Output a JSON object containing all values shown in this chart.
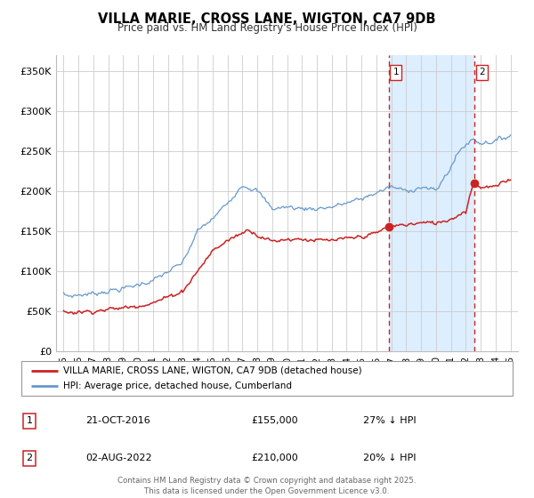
{
  "title": "VILLA MARIE, CROSS LANE, WIGTON, CA7 9DB",
  "subtitle": "Price paid vs. HM Land Registry's House Price Index (HPI)",
  "hpi_color": "#6699cc",
  "price_color": "#cc2222",
  "marker_color": "#cc2222",
  "shade_color": "#ddeeff",
  "bg_color": "#ffffff",
  "grid_color": "#cccccc",
  "sale1_date": 2016.81,
  "sale1_price": 155000,
  "sale1_label": "1",
  "sale2_date": 2022.58,
  "sale2_price": 210000,
  "sale2_label": "2",
  "ylabel_ticks": [
    "£0",
    "£50K",
    "£100K",
    "£150K",
    "£200K",
    "£250K",
    "£300K",
    "£350K"
  ],
  "ylabel_values": [
    0,
    50000,
    100000,
    150000,
    200000,
    250000,
    300000,
    350000
  ],
  "xlim": [
    1994.5,
    2025.5
  ],
  "ylim": [
    0,
    370000
  ],
  "legend_line1": "VILLA MARIE, CROSS LANE, WIGTON, CA7 9DB (detached house)",
  "legend_line2": "HPI: Average price, detached house, Cumberland",
  "table_row1_num": "1",
  "table_row1_date": "21-OCT-2016",
  "table_row1_price": "£155,000",
  "table_row1_hpi": "27% ↓ HPI",
  "table_row2_num": "2",
  "table_row2_date": "02-AUG-2022",
  "table_row2_price": "£210,000",
  "table_row2_hpi": "20% ↓ HPI",
  "footer": "Contains HM Land Registry data © Crown copyright and database right 2025.\nThis data is licensed under the Open Government Licence v3.0."
}
